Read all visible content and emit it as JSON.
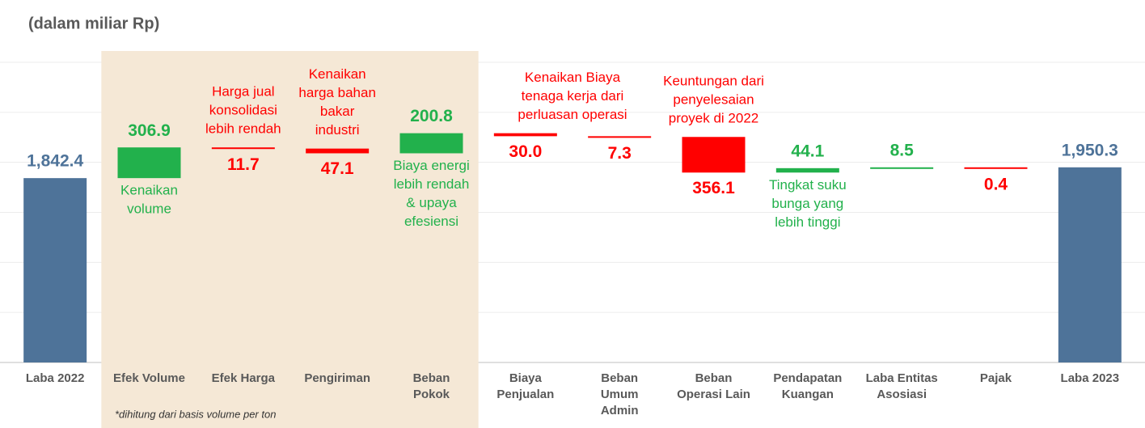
{
  "chart_data": {
    "type": "waterfall",
    "subtitle": "(dalam miliar Rp)",
    "categories": [
      [
        "Laba 2022"
      ],
      [
        "Efek Volume"
      ],
      [
        "Efek Harga"
      ],
      [
        "Pengiriman"
      ],
      [
        "Beban",
        "Pokok"
      ],
      [
        "Biaya",
        "Penjualan"
      ],
      [
        "Beban",
        "Umum",
        "Admin"
      ],
      [
        "Beban",
        "Operasi Lain"
      ],
      [
        "Pendapatan",
        "Kuangan"
      ],
      [
        "Laba Entitas",
        "Asosiasi"
      ],
      [
        "Pajak"
      ],
      [
        "Laba 2023"
      ]
    ],
    "measure": [
      "total",
      "relative",
      "relative",
      "relative",
      "relative",
      "relative",
      "relative",
      "relative",
      "relative",
      "relative",
      "relative",
      "total"
    ],
    "values": [
      1842.4,
      306.9,
      -11.7,
      -47.1,
      200.8,
      -30.0,
      -7.3,
      -356.1,
      44.1,
      8.5,
      -0.4,
      1950.3
    ],
    "value_labels": [
      "1,842.4",
      "306.9",
      "11.7",
      "47.1",
      "200.8",
      "30.0",
      "7.3",
      "356.1",
      "44.1",
      "8.5",
      "0.4",
      "1,950.3"
    ],
    "annotations": [
      null,
      [
        "Kenaikan",
        "volume"
      ],
      [
        "Harga jual",
        "konsolidasi",
        "lebih rendah"
      ],
      [
        "Kenaikan",
        "harga bahan",
        "bakar",
        "industri"
      ],
      [
        "Biaya energi",
        "lebih rendah",
        "& upaya",
        "efesiensi"
      ],
      [
        "Kenaikan Biaya",
        "tenaga kerja dari",
        "perluasan operasi"
      ],
      null,
      [
        "Keuntungan dari",
        "penyelesaian",
        "proyek di 2022"
      ],
      [
        "Tingkat suku",
        "bunga yang",
        "lebih tinggi"
      ],
      null,
      null,
      null
    ],
    "colors": {
      "total": "#4e7399",
      "increase": "#22b14c",
      "decrease": "#ff0000"
    },
    "ylim": [
      0,
      3000
    ],
    "yticks": [
      0,
      500,
      1000,
      1500,
      2000,
      2500,
      3000
    ],
    "grid": true,
    "note": "*dihitung dari basis volume per ton"
  }
}
